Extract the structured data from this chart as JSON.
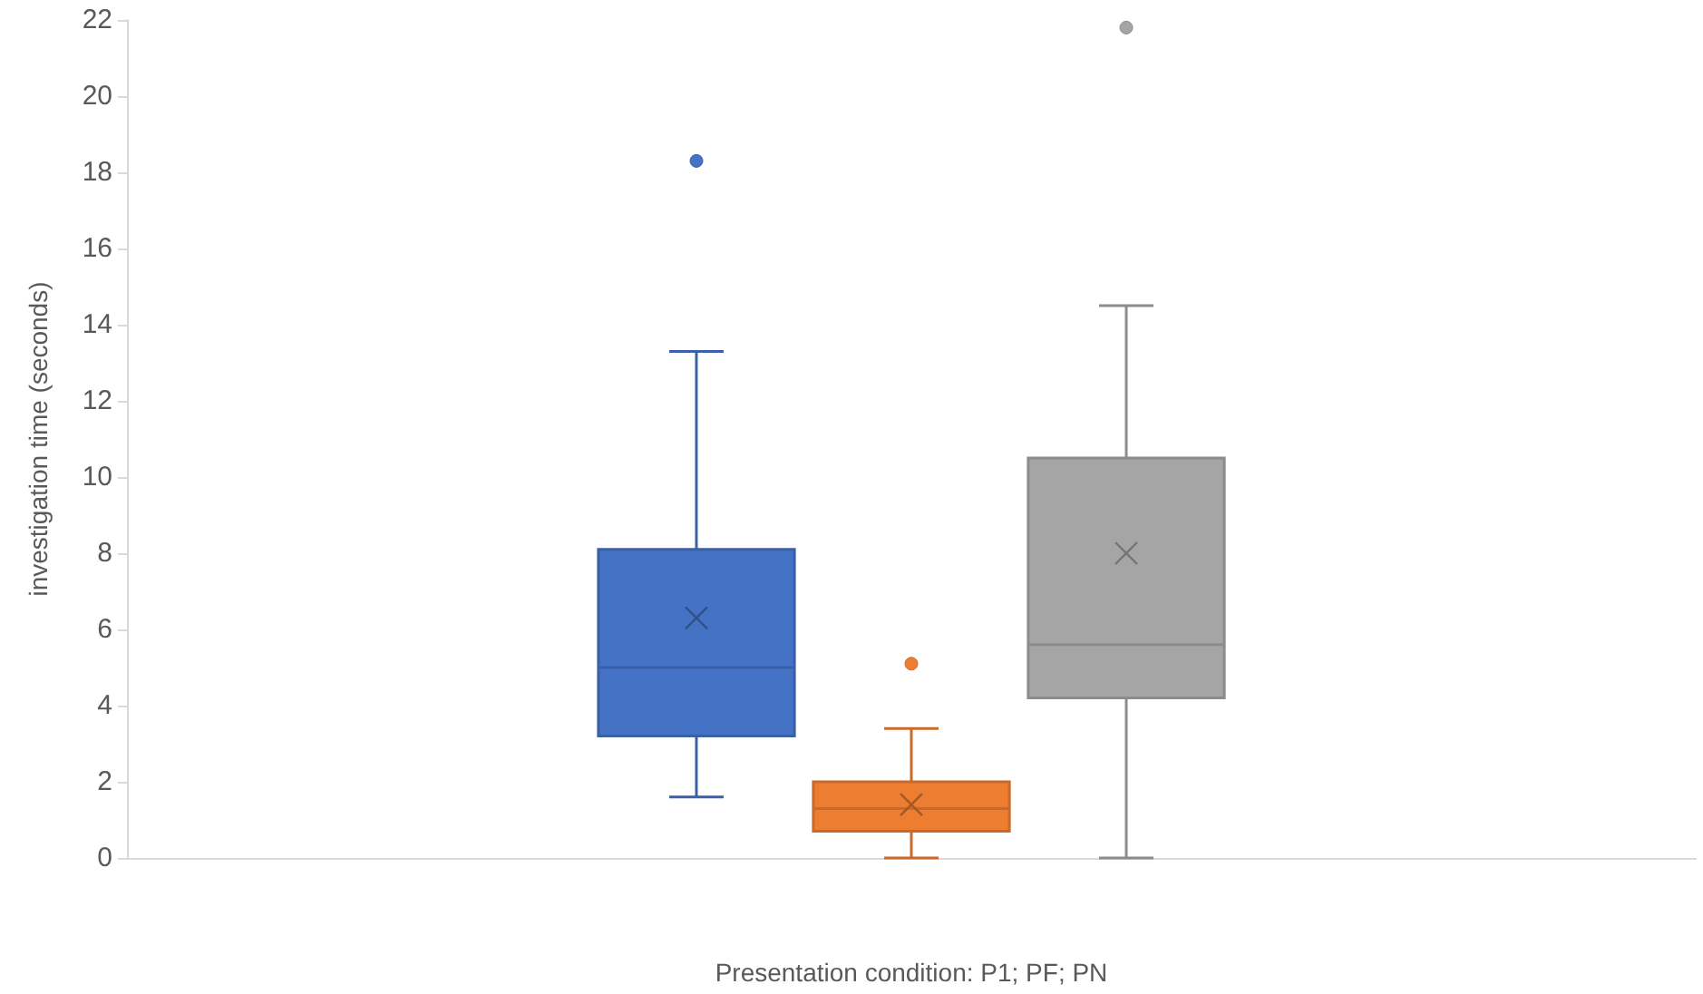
{
  "chart_data": {
    "type": "box",
    "xlabel": "Presentation condition: P1; PF; PN",
    "ylabel": "investigation time (seconds)",
    "categories": [
      null
    ],
    "ylim": [
      0,
      22
    ],
    "yticks": [
      0,
      2,
      4,
      6,
      8,
      10,
      12,
      14,
      16,
      18,
      20,
      22
    ],
    "series": [
      {
        "color": "#4472c4",
        "boxes": [
          {
            "low": 1.6,
            "q1": 3.2,
            "median": 5.0,
            "q3": 8.1,
            "high": 13.3,
            "mean": 6.3,
            "outliers": [
              18.3
            ]
          }
        ]
      },
      {
        "color": "#ed7d31",
        "boxes": [
          {
            "low": 0,
            "q1": 0.7,
            "median": 1.3,
            "q3": 2.0,
            "high": 3.4,
            "mean": 1.4,
            "outliers": [
              5.1
            ]
          }
        ]
      },
      {
        "color": "#a5a5a5",
        "boxes": [
          {
            "low": 0,
            "q1": 4.2,
            "median": 5.6,
            "q3": 10.5,
            "high": 14.5,
            "mean": 8.0,
            "outliers": [
              21.8
            ]
          }
        ]
      }
    ]
  }
}
